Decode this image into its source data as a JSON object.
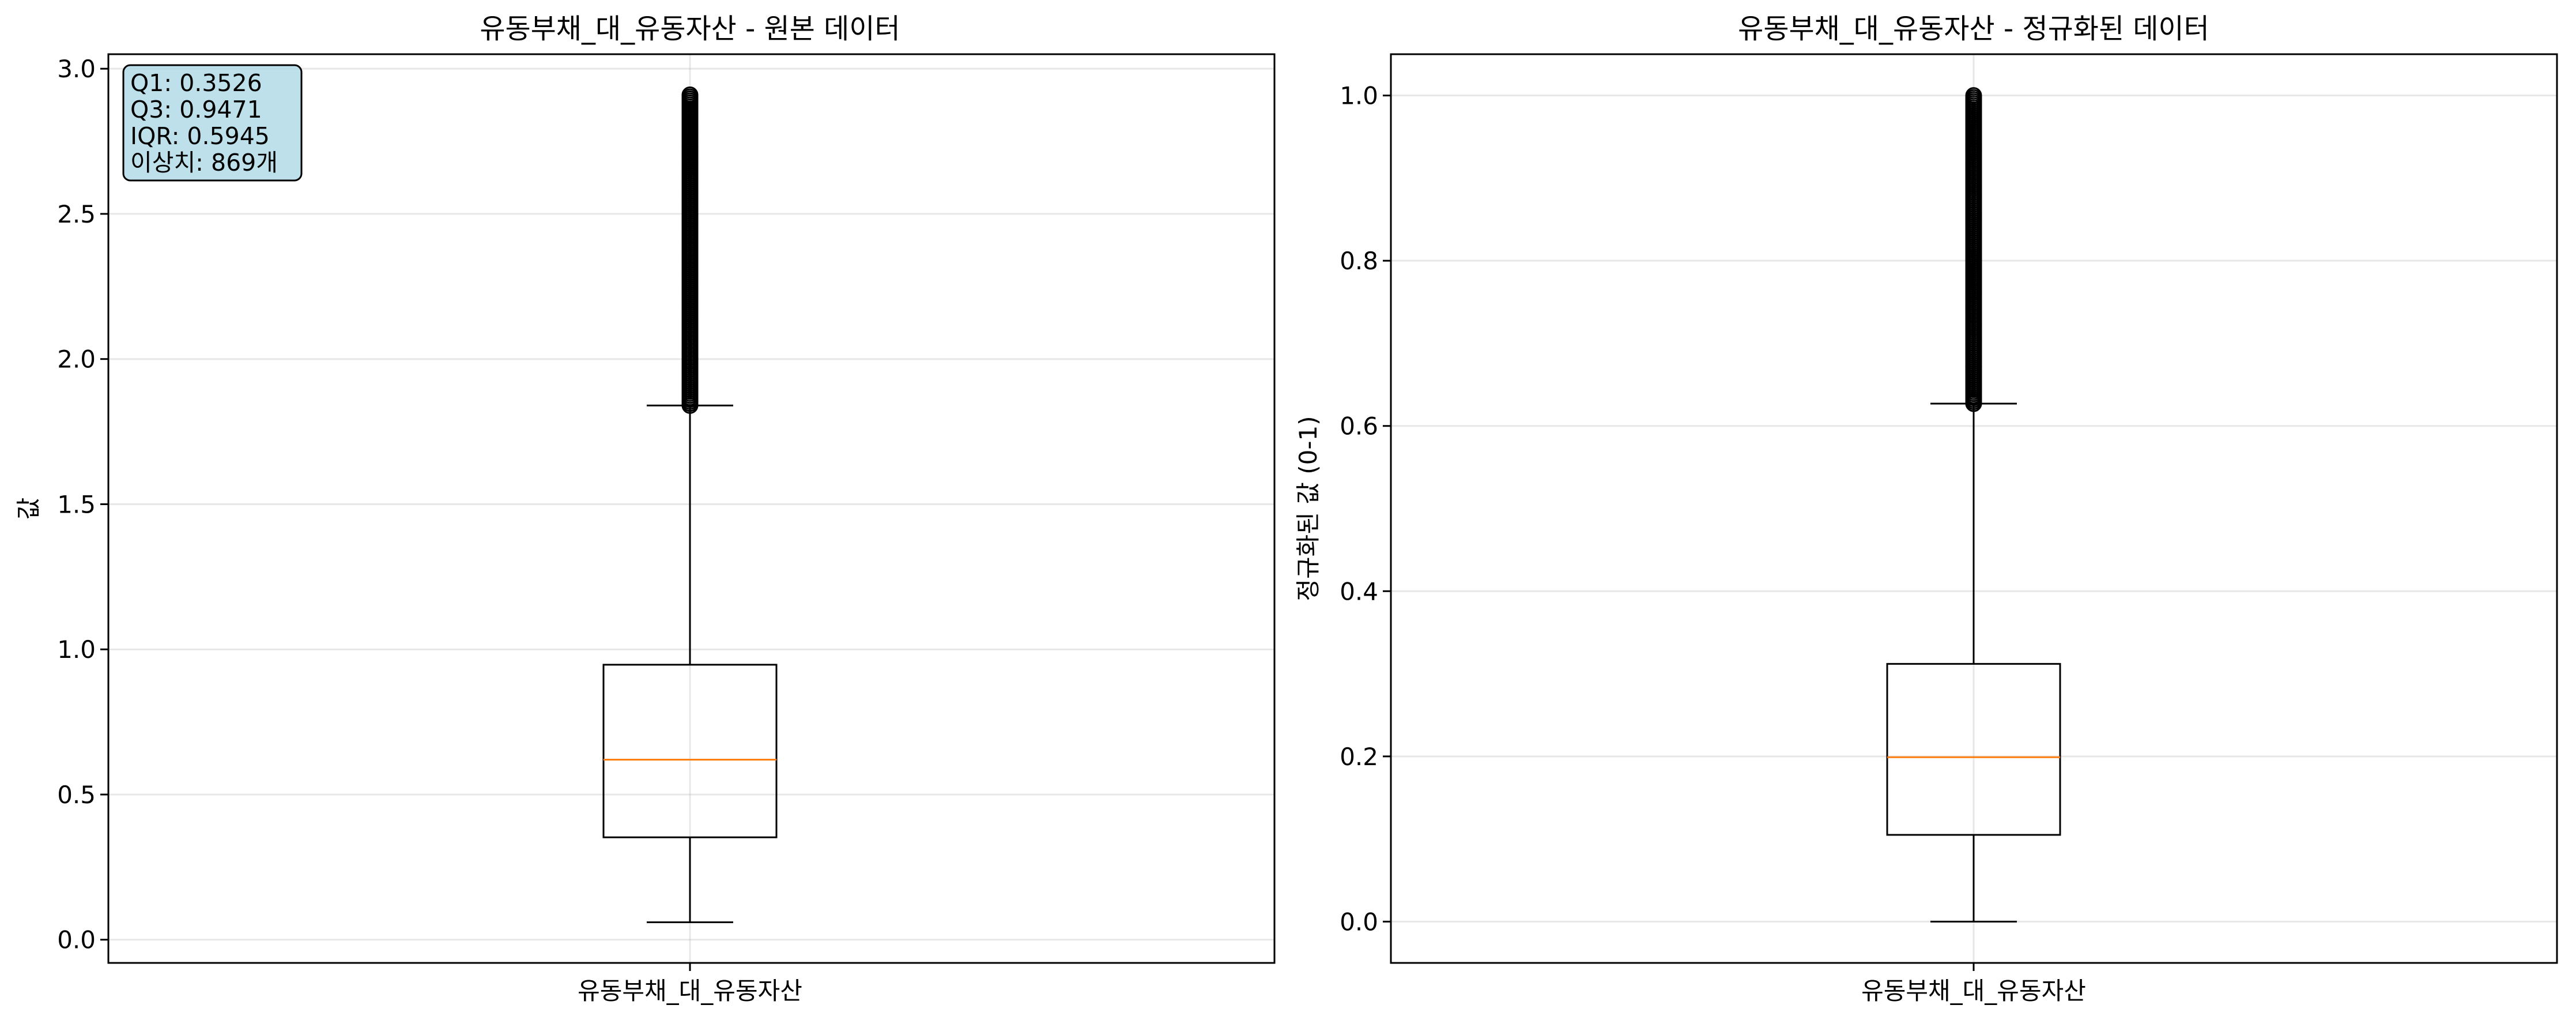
{
  "chart_data": [
    {
      "type": "box",
      "title": "유동부채_대_유동자산 - 원본 데이터",
      "xlabel": "",
      "ylabel": "값",
      "categories": [
        "유동부채_대_유동자산"
      ],
      "ylim": [
        -0.08,
        3.05
      ],
      "yticks": [
        0.0,
        0.5,
        1.0,
        1.5,
        2.0,
        2.5,
        3.0
      ],
      "ytick_labels": [
        "0.0",
        "0.5",
        "1.0",
        "1.5",
        "2.0",
        "2.5",
        "3.0"
      ],
      "grid": true,
      "box": {
        "q1": 0.3526,
        "median": 0.62,
        "q3": 0.9471,
        "whisker_low": 0.06,
        "whisker_high": 1.84,
        "outlier_min": 1.84,
        "outlier_max": 2.91,
        "outlier_count": 869
      },
      "annotation": [
        "Q1: 0.3526",
        "Q3: 0.9471",
        "IQR: 0.5945",
        "이상치: 869개"
      ],
      "annotation_position": "top-left",
      "colors": {
        "box": "#000000",
        "median": "#ff7f0e",
        "annotation_bg": "#add8e6"
      }
    },
    {
      "type": "box",
      "title": "유동부채_대_유동자산 - 정규화된 데이터",
      "xlabel": "",
      "ylabel": "정규화된 값 (0-1)",
      "categories": [
        "유동부채_대_유동자산"
      ],
      "ylim": [
        -0.05,
        1.05
      ],
      "yticks": [
        0.0,
        0.2,
        0.4,
        0.6,
        0.8,
        1.0
      ],
      "ytick_labels": [
        "0.0",
        "0.2",
        "0.4",
        "0.6",
        "0.8",
        "1.0"
      ],
      "grid": true,
      "box": {
        "q1": 0.105,
        "median": 0.199,
        "q3": 0.312,
        "whisker_low": 0.0,
        "whisker_high": 0.627,
        "outlier_min": 0.627,
        "outlier_max": 1.0
      },
      "colors": {
        "box": "#000000",
        "median": "#ff7f0e"
      }
    }
  ]
}
